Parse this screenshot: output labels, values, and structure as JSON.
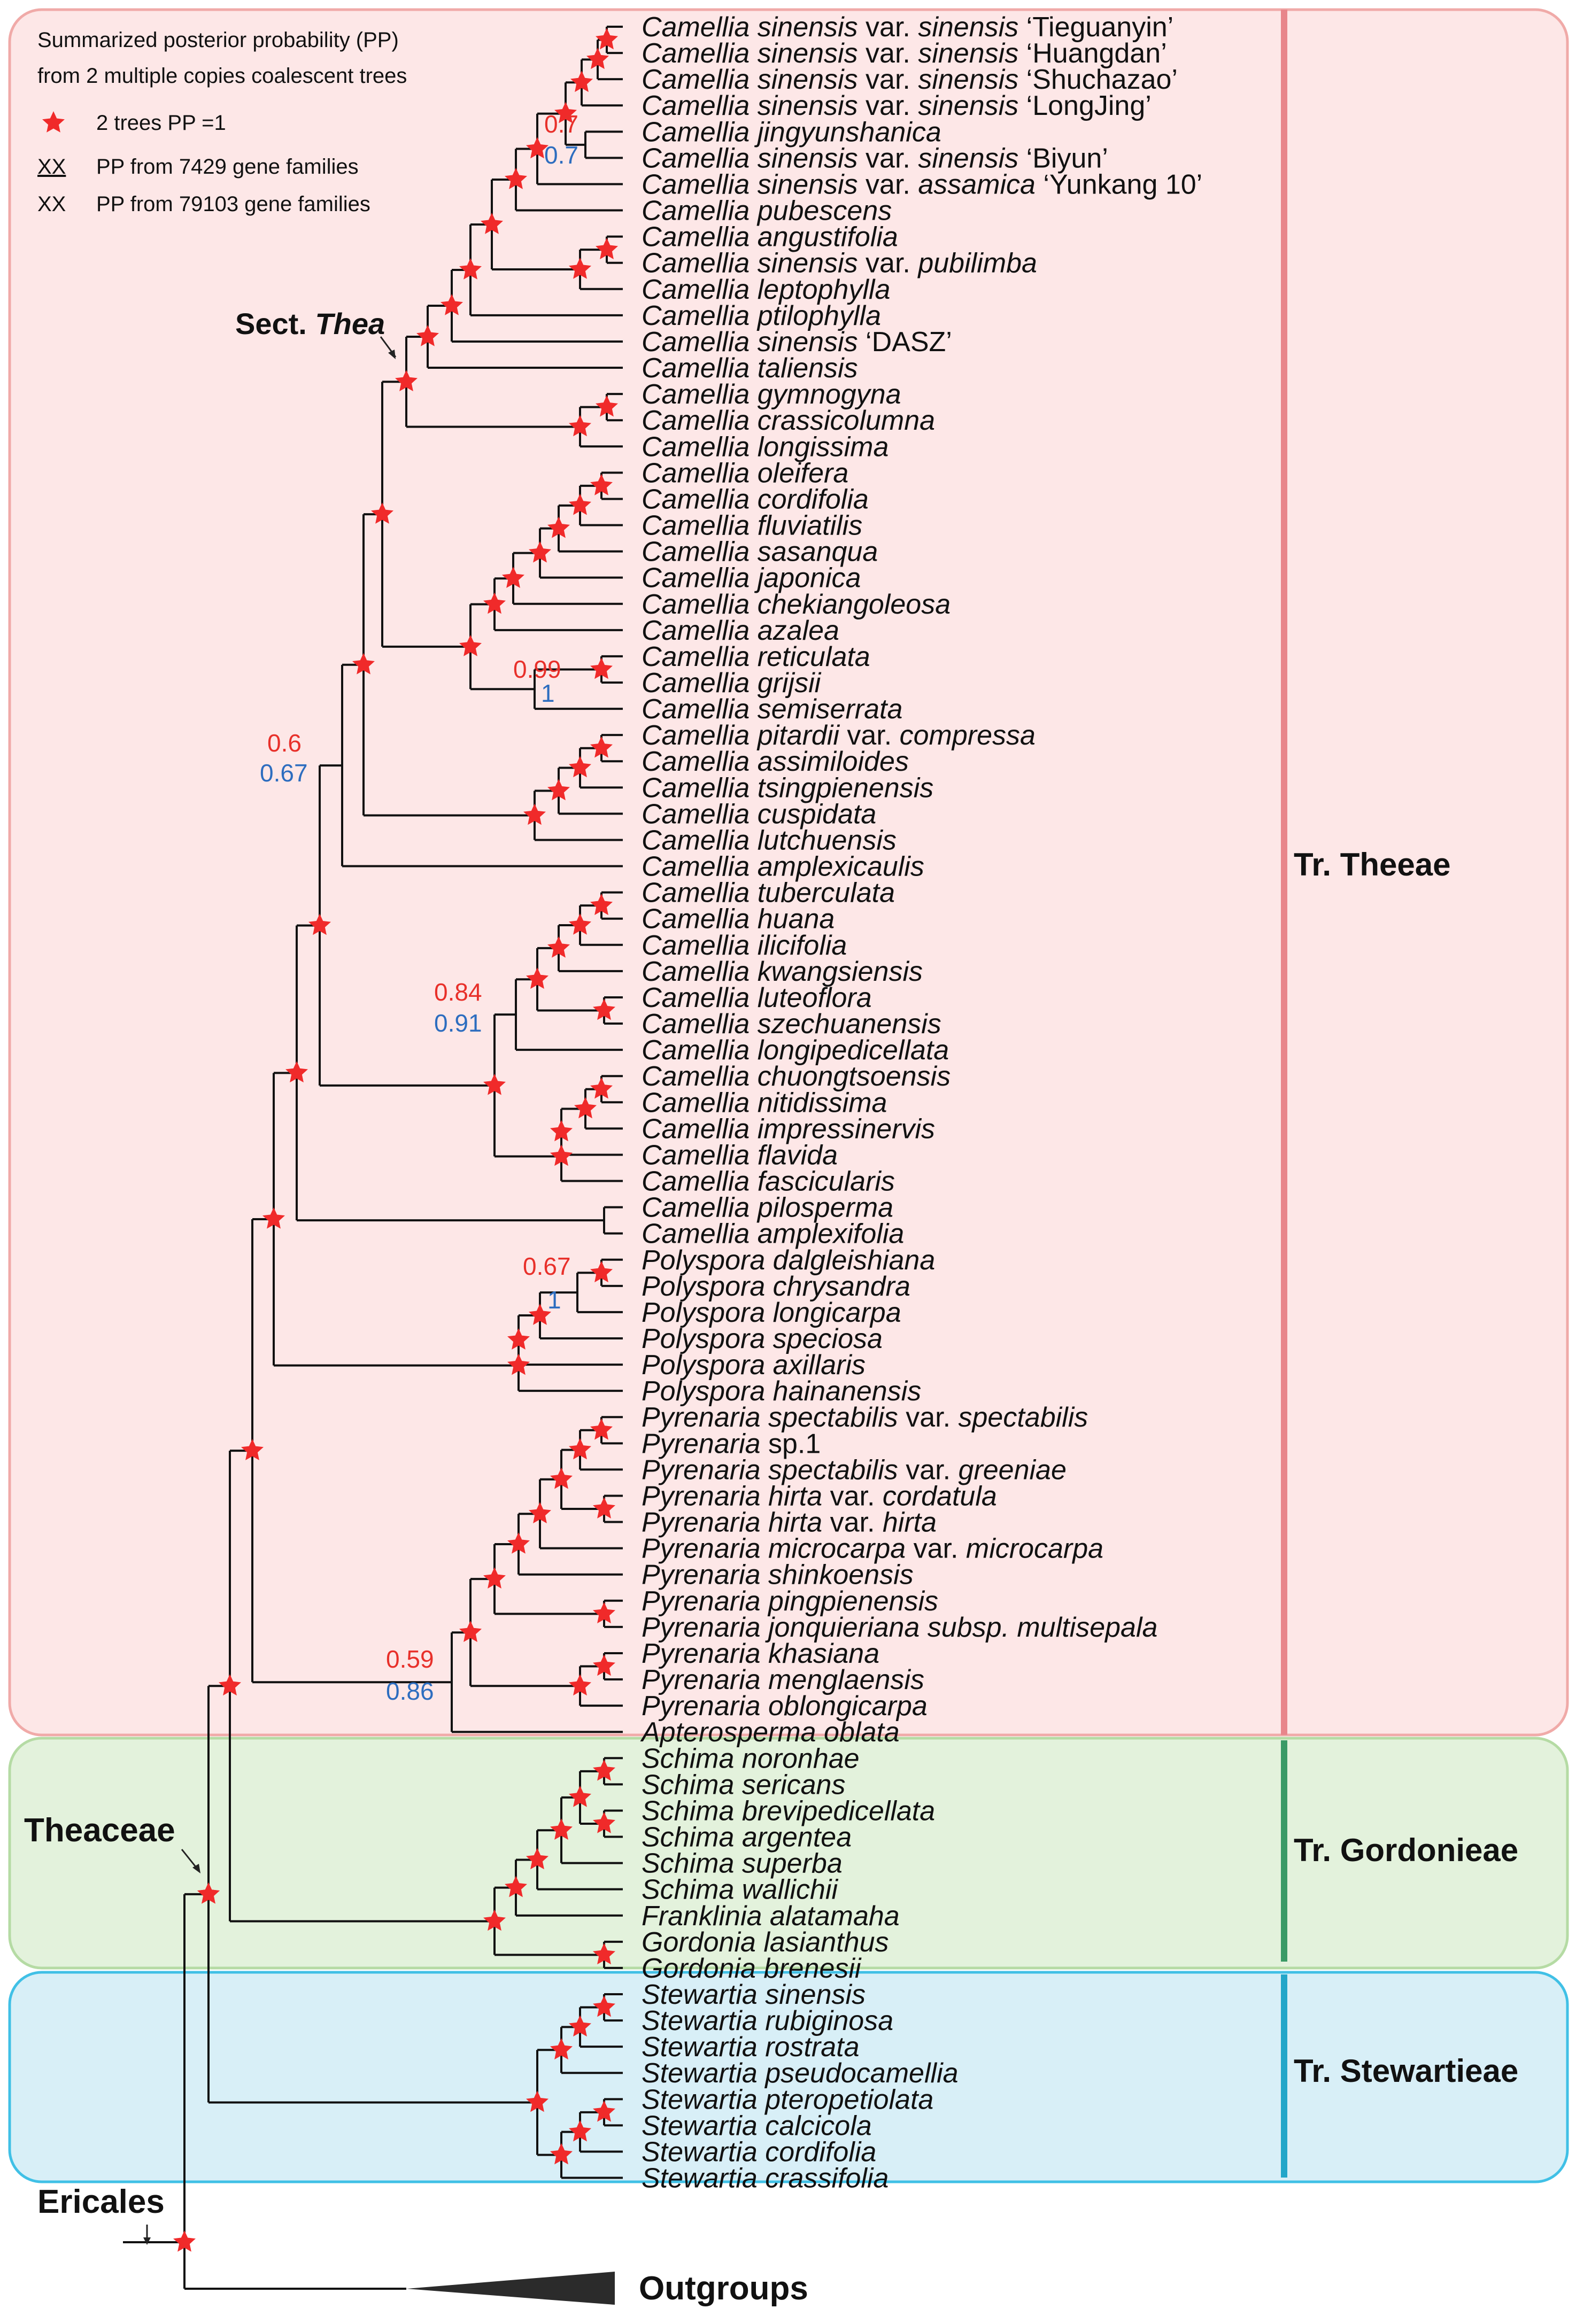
{
  "legend": {
    "line1": "Summarized posterior probability (PP)",
    "line2": "from 2 multiple copies coalescent trees",
    "star_text": "2 trees PP =1",
    "xx": "XX",
    "red_text": "PP from 7429 gene families",
    "blue_text": "PP from 79103 gene families"
  },
  "labels": {
    "sect_thea_prefix": "Sect. ",
    "sect_thea_italic": "Thea",
    "theaceae": "Theaceae",
    "ericales": "Ericales",
    "outgroups": "Outgroups"
  },
  "tribes": [
    {
      "name": "Tr. Theeae",
      "bar_color": "#e8868b",
      "fill": "#fde7e7",
      "stroke": "#f0aaa8"
    },
    {
      "name": "Tr. Gordonieae",
      "bar_color": "#3a9a66",
      "fill": "#e3f2dc",
      "stroke": "#b5dba4"
    },
    {
      "name": "Tr. Stewartieae",
      "bar_color": "#22a6c9",
      "fill": "#d8eff7",
      "stroke": "#40c0e6"
    }
  ],
  "colors": {
    "red_pp": "#e8302a",
    "blue_pp": "#2d6dbf",
    "star": "#f02a2a"
  },
  "taxa": [
    [
      [
        "Camellia sinensis",
        0
      ],
      [
        " var. ",
        1
      ],
      [
        "sinensis",
        0
      ],
      [
        " ‘Tieguanyin’",
        1
      ]
    ],
    [
      [
        "Camellia sinensis",
        0
      ],
      [
        " var. ",
        1
      ],
      [
        "sinensis",
        0
      ],
      [
        " ‘Huangdan’",
        1
      ]
    ],
    [
      [
        "Camellia sinensis",
        0
      ],
      [
        " var. ",
        1
      ],
      [
        "sinensis",
        0
      ],
      [
        " ‘Shuchazao’",
        1
      ]
    ],
    [
      [
        "Camellia sinensis",
        0
      ],
      [
        " var. ",
        1
      ],
      [
        "sinensis",
        0
      ],
      [
        " ‘LongJing’",
        1
      ]
    ],
    [
      [
        "Camellia jingyunshanica",
        0
      ]
    ],
    [
      [
        "Camellia sinensis",
        0
      ],
      [
        " var. ",
        1
      ],
      [
        "sinensis",
        0
      ],
      [
        " ‘Biyun’",
        1
      ]
    ],
    [
      [
        "Camellia sinensis",
        0
      ],
      [
        " var. ",
        1
      ],
      [
        "assamica",
        0
      ],
      [
        " ‘Yunkang 10’",
        1
      ]
    ],
    [
      [
        "Camellia pubescens",
        0
      ]
    ],
    [
      [
        "Camellia angustifolia",
        0
      ]
    ],
    [
      [
        "Camellia sinensis",
        0
      ],
      [
        " var. ",
        1
      ],
      [
        "pubilimba",
        0
      ]
    ],
    [
      [
        "Camellia leptophylla",
        0
      ]
    ],
    [
      [
        "Camellia ptilophylla",
        0
      ]
    ],
    [
      [
        "Camellia sinensis",
        0
      ],
      [
        " ‘DASZ’",
        1
      ]
    ],
    [
      [
        "Camellia taliensis",
        0
      ]
    ],
    [
      [
        "Camellia gymnogyna",
        0
      ]
    ],
    [
      [
        "Camellia crassicolumna",
        0
      ]
    ],
    [
      [
        "Camellia longissima",
        0
      ]
    ],
    [
      [
        "Camellia oleifera",
        0
      ]
    ],
    [
      [
        "Camellia cordifolia",
        0
      ]
    ],
    [
      [
        "Camellia fluviatilis",
        0
      ]
    ],
    [
      [
        "Camellia sasanqua",
        0
      ]
    ],
    [
      [
        "Camellia japonica",
        0
      ]
    ],
    [
      [
        "Camellia chekiangoleosa",
        0
      ]
    ],
    [
      [
        "Camellia azalea",
        0
      ]
    ],
    [
      [
        "Camellia reticulata",
        0
      ]
    ],
    [
      [
        "Camellia grijsii",
        0
      ]
    ],
    [
      [
        "Camellia semiserrata",
        0
      ]
    ],
    [
      [
        "Camellia pitardii",
        0
      ],
      [
        " var. ",
        1
      ],
      [
        "compressa",
        0
      ]
    ],
    [
      [
        "Camellia assimiloides",
        0
      ]
    ],
    [
      [
        "Camellia tsingpienensis",
        0
      ]
    ],
    [
      [
        "Camellia cuspidata",
        0
      ]
    ],
    [
      [
        "Camellia lutchuensis",
        0
      ]
    ],
    [
      [
        "Camellia amplexicaulis",
        0
      ]
    ],
    [
      [
        "Camellia tuberculata",
        0
      ]
    ],
    [
      [
        "Camellia huana",
        0
      ]
    ],
    [
      [
        "Camellia ilicifolia",
        0
      ]
    ],
    [
      [
        "Camellia kwangsiensis",
        0
      ]
    ],
    [
      [
        "Camellia luteoflora",
        0
      ]
    ],
    [
      [
        "Camellia szechuanensis",
        0
      ]
    ],
    [
      [
        "Camellia longipedicellata",
        0
      ]
    ],
    [
      [
        "Camellia chuongtsoensis",
        0
      ]
    ],
    [
      [
        "Camellia nitidissima",
        0
      ]
    ],
    [
      [
        "Camellia impressinervis",
        0
      ]
    ],
    [
      [
        "Camellia flavida",
        0
      ]
    ],
    [
      [
        "Camellia fascicularis",
        0
      ]
    ],
    [
      [
        "Camellia pilosperma",
        0
      ]
    ],
    [
      [
        "Camellia amplexifolia",
        0
      ]
    ],
    [
      [
        "Polyspora dalgleishiana",
        0
      ]
    ],
    [
      [
        "Polyspora chrysandra",
        0
      ]
    ],
    [
      [
        "Polyspora longicarpa",
        0
      ]
    ],
    [
      [
        "Polyspora speciosa",
        0
      ]
    ],
    [
      [
        "Polyspora axillaris",
        0
      ]
    ],
    [
      [
        "Polyspora hainanensis",
        0
      ]
    ],
    [
      [
        "Pyrenaria spectabilis",
        0
      ],
      [
        " var. ",
        1
      ],
      [
        "spectabilis",
        0
      ]
    ],
    [
      [
        "Pyrenaria",
        0
      ],
      [
        " sp.1",
        1
      ]
    ],
    [
      [
        "Pyrenaria spectabilis",
        0
      ],
      [
        " var. ",
        1
      ],
      [
        "greeniae",
        0
      ]
    ],
    [
      [
        "Pyrenaria hirta",
        0
      ],
      [
        " var. ",
        1
      ],
      [
        "cordatula",
        0
      ]
    ],
    [
      [
        "Pyrenaria hirta",
        0
      ],
      [
        " var. ",
        1
      ],
      [
        "hirta",
        0
      ]
    ],
    [
      [
        "Pyrenaria microcarpa",
        0
      ],
      [
        " var. ",
        1
      ],
      [
        "microcarpa",
        0
      ]
    ],
    [
      [
        "Pyrenaria shinkoensis",
        0
      ]
    ],
    [
      [
        "Pyrenaria pingpienensis",
        0
      ]
    ],
    [
      [
        "Pyrenaria jonquieriana subsp. multisepala",
        0
      ]
    ],
    [
      [
        "Pyrenaria khasiana",
        0
      ]
    ],
    [
      [
        "Pyrenaria menglaensis",
        0
      ]
    ],
    [
      [
        "Pyrenaria oblongicarpa",
        0
      ]
    ],
    [
      [
        "Apterosperma oblata",
        0
      ]
    ],
    [
      [
        "Schima noronhae",
        0
      ]
    ],
    [
      [
        "Schima sericans",
        0
      ]
    ],
    [
      [
        "Schima brevipedicellata",
        0
      ]
    ],
    [
      [
        "Schima argentea",
        0
      ]
    ],
    [
      [
        "Schima superba",
        0
      ]
    ],
    [
      [
        "Schima wallichii",
        0
      ]
    ],
    [
      [
        "Franklinia alatamaha",
        0
      ]
    ],
    [
      [
        "Gordonia lasianthus",
        0
      ]
    ],
    [
      [
        "Gordonia brenesii",
        0
      ]
    ],
    [
      [
        "Stewartia sinensis",
        0
      ]
    ],
    [
      [
        "Stewartia rubiginosa",
        0
      ]
    ],
    [
      [
        "Stewartia rostrata",
        0
      ]
    ],
    [
      [
        "Stewartia pseudocamellia",
        0
      ]
    ],
    [
      [
        "Stewartia pteropetiolata",
        0
      ]
    ],
    [
      [
        "Stewartia calcicola",
        0
      ]
    ],
    [
      [
        "Stewartia cordifolia",
        0
      ]
    ],
    [
      [
        "Stewartia crassifolia",
        0
      ]
    ]
  ],
  "pp_values": [
    {
      "id": "jingyun",
      "red": "0.7",
      "blue": "0.7"
    },
    {
      "id": "reticulata",
      "red": "0.99",
      "blue": "1"
    },
    {
      "id": "camellia-core",
      "red": "0.6",
      "blue": "0.67"
    },
    {
      "id": "yellow-camellia",
      "red": "0.84",
      "blue": "0.91"
    },
    {
      "id": "polyspora",
      "red": "0.67",
      "blue": "1"
    },
    {
      "id": "pyrenaria",
      "red": "0.59",
      "blue": "0.86"
    }
  ]
}
